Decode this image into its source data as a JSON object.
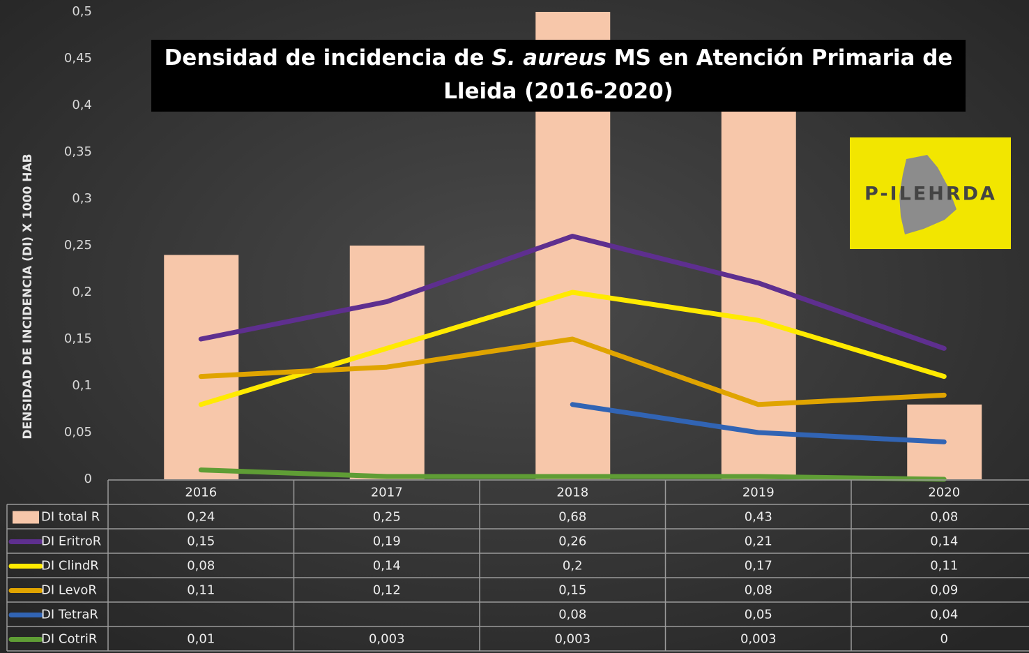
{
  "chart_data": {
    "type": "bar-line",
    "title": "Densidad de incidencia de S. aureus MS en Atención Primaria de Lleida (2016-2020)",
    "y_label": "DENSIDAD DE INCIDENCIA (DI)  X 1000 HAB",
    "logo": "P-ILEHRDA",
    "categories": [
      "2016",
      "2017",
      "2018",
      "2019",
      "2020"
    ],
    "series": [
      {
        "name": "DI total R",
        "type": "bar",
        "color": "#f7c7aa",
        "values": [
          0.24,
          0.25,
          0.68,
          0.43,
          0.08
        ],
        "value_labels": [
          "0,24",
          "0,25",
          "0,68",
          "0,43",
          "0,08"
        ]
      },
      {
        "name": "DI EritroR",
        "type": "line",
        "color": "#5e2f8f",
        "values": [
          0.15,
          0.19,
          0.26,
          0.21,
          0.14
        ],
        "value_labels": [
          "0,15",
          "0,19",
          "0,26",
          "0,21",
          "0,14"
        ]
      },
      {
        "name": "DI ClindR",
        "type": "line",
        "color": "#ffea00",
        "values": [
          0.08,
          0.14,
          0.2,
          0.17,
          0.11
        ],
        "value_labels": [
          "0,08",
          "0,14",
          "0,2",
          "0,17",
          "0,11"
        ]
      },
      {
        "name": "DI LevoR",
        "type": "line",
        "color": "#e0a400",
        "values": [
          0.11,
          0.12,
          0.15,
          0.08,
          0.09
        ],
        "value_labels": [
          "0,11",
          "0,12",
          "0,15",
          "0,08",
          "0,09"
        ]
      },
      {
        "name": "DI TetraR",
        "type": "line",
        "color": "#3164b4",
        "values": [
          null,
          null,
          0.08,
          0.05,
          0.04
        ],
        "value_labels": [
          null,
          null,
          "0,08",
          "0,05",
          "0,04"
        ]
      },
      {
        "name": "DI CotriR",
        "type": "line",
        "color": "#5f9d35",
        "values": [
          0.01,
          0.003,
          0.003,
          0.003,
          0
        ],
        "value_labels": [
          "0,01",
          "0,003",
          "0,003",
          "0,003",
          "0"
        ]
      }
    ],
    "ylim": [
      0,
      0.5
    ],
    "yticks": [
      0,
      {
        "value": 0.05,
        "label": "0,05"
      },
      {
        "value": 0.1,
        "label": "0,1"
      },
      {
        "value": 0.15,
        "label": "0,15"
      },
      {
        "value": 0.2,
        "label": "0,2"
      },
      {
        "value": 0.25,
        "label": "0,25"
      },
      {
        "value": 0.3,
        "label": "0,3"
      },
      {
        "value": 0.35,
        "label": "0,35"
      },
      {
        "value": 0.4,
        "label": "0,4"
      },
      {
        "value": 0.45,
        "label": "0,45"
      },
      {
        "value": 0.5,
        "label": "0,5"
      }
    ],
    "grid": false
  }
}
